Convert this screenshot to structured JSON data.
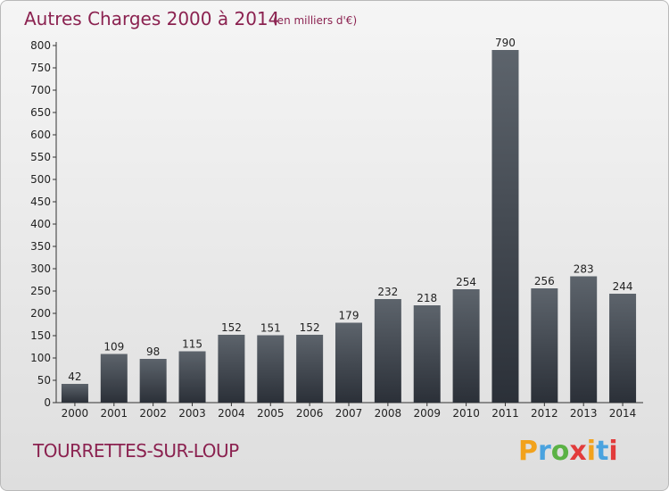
{
  "chart_data": {
    "type": "bar",
    "title": "Autres Charges 2000 à 2014",
    "subtitle": "(en milliers d'€)",
    "categories": [
      "2000",
      "2001",
      "2002",
      "2003",
      "2004",
      "2005",
      "2006",
      "2007",
      "2008",
      "2009",
      "2010",
      "2011",
      "2012",
      "2013",
      "2014"
    ],
    "values": [
      42,
      109,
      98,
      115,
      152,
      151,
      152,
      179,
      232,
      218,
      254,
      790,
      256,
      283,
      244
    ],
    "ylim": [
      0,
      800
    ],
    "yticks": [
      0,
      50,
      100,
      150,
      200,
      250,
      300,
      350,
      400,
      450,
      500,
      550,
      600,
      650,
      700,
      750,
      800
    ],
    "grid": false,
    "bar_color": "#3a3f47"
  },
  "commune": "TOURRETTES-SUR-LOUP",
  "logo": {
    "letters": [
      "P",
      "r",
      "o",
      "x",
      "i",
      "t",
      "i"
    ],
    "colors": [
      "#f2a21c",
      "#4aa3df",
      "#5bb245",
      "#e23c3c",
      "#f2a21c",
      "#4aa3df",
      "#e23c3c"
    ]
  }
}
